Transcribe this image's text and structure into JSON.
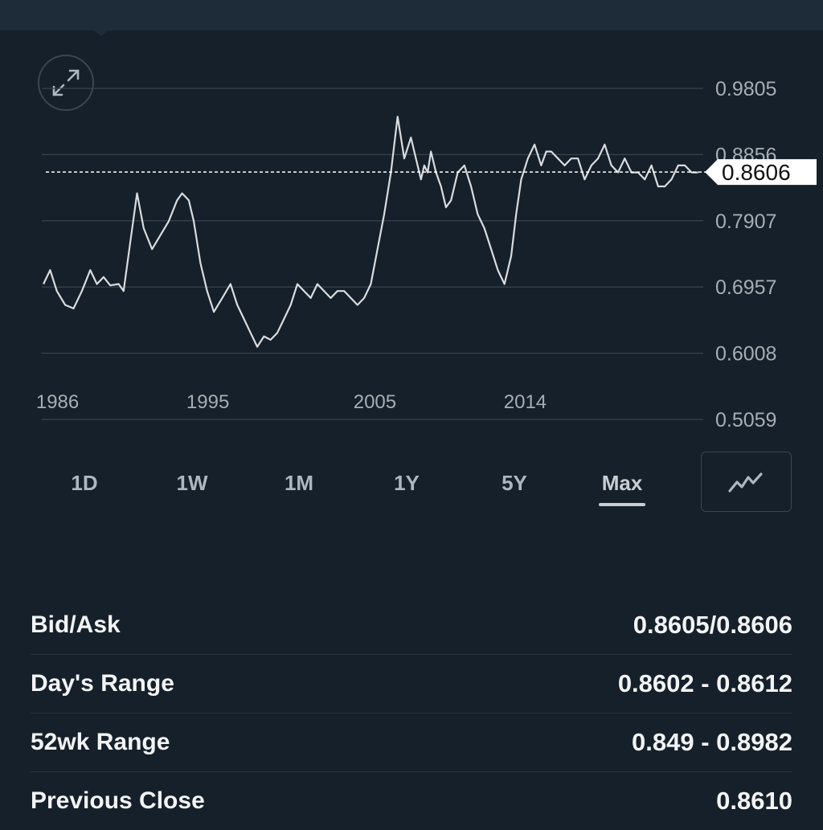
{
  "chart": {
    "expand_icon": "expand-arrows-icon",
    "chart_type_icon": "line-chart-icon",
    "colors": {
      "line": "#d9dcdf",
      "grid": "#39434e",
      "axis_text": "#a7adb4",
      "badge_bg": "#ffffff",
      "badge_text": "#111111"
    }
  },
  "chart_data": {
    "type": "line",
    "y_ticks": [
      "0.9805",
      "0.8856",
      "0.7907",
      "0.6957",
      "0.6008",
      "0.5059"
    ],
    "x_ticks": [
      {
        "label": "1986",
        "x": 1986
      },
      {
        "label": "1995",
        "x": 1995
      },
      {
        "label": "2005",
        "x": 2005
      },
      {
        "label": "2014",
        "x": 2014
      }
    ],
    "ylim": [
      0.5059,
      0.9805
    ],
    "xlim": [
      1984.9,
      2024.5
    ],
    "current_value": "0.8606",
    "current_value_num": 0.8606,
    "series": [
      {
        "x": [
          1985.0,
          1985.4,
          1985.8,
          1986.3,
          1986.8,
          1987.3,
          1987.8,
          1988.2,
          1988.6,
          1989.0,
          1989.5,
          1989.8,
          1990.2,
          1990.6,
          1991.0,
          1991.5,
          1992.0,
          1992.5,
          1993.0,
          1993.3,
          1993.7,
          1994.0,
          1994.4,
          1994.8,
          1995.2,
          1995.7,
          1996.2,
          1996.6,
          1997.0,
          1997.4,
          1997.8,
          1998.2,
          1998.6,
          1999.0,
          1999.4,
          1999.8,
          2000.2,
          2000.6,
          2001.0,
          2001.4,
          2001.8,
          2002.2,
          2002.6,
          2003.0,
          2003.4,
          2003.8,
          2004.2,
          2004.6,
          2005.0,
          2005.4,
          2005.8,
          2006.2,
          2006.6,
          2007.0,
          2007.3,
          2007.6,
          2007.8,
          2008.0,
          2008.2,
          2008.5,
          2008.8,
          2009.1,
          2009.4,
          2009.8,
          2010.2,
          2010.6,
          2011.0,
          2011.4,
          2011.8,
          2012.2,
          2012.6,
          2013.0,
          2013.3,
          2013.6,
          2014.0,
          2014.4,
          2014.8,
          2015.1,
          2015.4,
          2015.8,
          2016.2,
          2016.6,
          2017.0,
          2017.4,
          2017.8,
          2018.2,
          2018.6,
          2019.0,
          2019.4,
          2019.8,
          2020.2,
          2020.6,
          2021.0,
          2021.4,
          2021.8,
          2022.2,
          2022.6,
          2023.0,
          2023.4,
          2023.8,
          2024.2
        ],
        "values": [
          0.7,
          0.72,
          0.69,
          0.67,
          0.665,
          0.69,
          0.72,
          0.7,
          0.71,
          0.698,
          0.7,
          0.69,
          0.76,
          0.83,
          0.78,
          0.75,
          0.77,
          0.79,
          0.82,
          0.83,
          0.82,
          0.79,
          0.73,
          0.69,
          0.66,
          0.68,
          0.7,
          0.67,
          0.65,
          0.63,
          0.61,
          0.625,
          0.62,
          0.63,
          0.65,
          0.67,
          0.7,
          0.69,
          0.68,
          0.7,
          0.69,
          0.68,
          0.69,
          0.69,
          0.68,
          0.67,
          0.68,
          0.7,
          0.75,
          0.8,
          0.86,
          0.94,
          0.88,
          0.91,
          0.88,
          0.85,
          0.87,
          0.86,
          0.89,
          0.86,
          0.84,
          0.81,
          0.82,
          0.86,
          0.87,
          0.84,
          0.8,
          0.78,
          0.75,
          0.72,
          0.7,
          0.74,
          0.8,
          0.85,
          0.88,
          0.9,
          0.87,
          0.89,
          0.89,
          0.88,
          0.87,
          0.88,
          0.88,
          0.85,
          0.87,
          0.88,
          0.9,
          0.87,
          0.86,
          0.88,
          0.86,
          0.86,
          0.85,
          0.87,
          0.84,
          0.84,
          0.85,
          0.87,
          0.87,
          0.86,
          0.86
        ]
      }
    ]
  },
  "range_tabs": [
    {
      "label": "1D"
    },
    {
      "label": "1W"
    },
    {
      "label": "1M"
    },
    {
      "label": "1Y"
    },
    {
      "label": "5Y"
    },
    {
      "label": "Max",
      "active": true
    }
  ],
  "stats": [
    {
      "label": "Bid/Ask",
      "value": "0.8605/0.8606"
    },
    {
      "label": "Day's Range",
      "value": "0.8602 - 0.8612"
    },
    {
      "label": "52wk Range",
      "value": "0.849 - 0.8982"
    },
    {
      "label": "Previous Close",
      "value": "0.8610"
    }
  ]
}
